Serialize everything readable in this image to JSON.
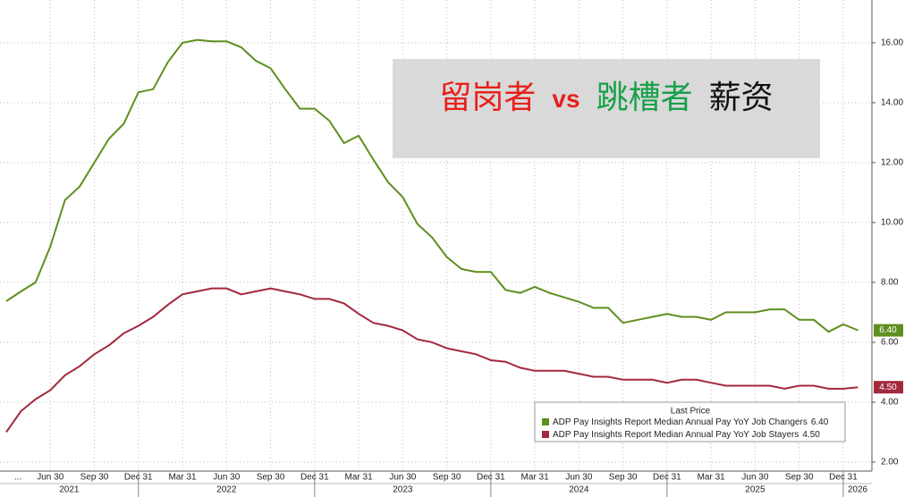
{
  "chart_data": {
    "type": "line",
    "annotation": [
      {
        "text": "留岗者",
        "color": "#e8201c"
      },
      {
        "text": "vs",
        "color": "#e8201c"
      },
      {
        "text": "跳槽者",
        "color": "#19a04a"
      },
      {
        "text": "薪资",
        "color": "#111111"
      }
    ],
    "legend_title": "Last Price",
    "categories": [
      "...",
      null,
      null,
      "Jun 30",
      null,
      null,
      "Sep 30",
      null,
      null,
      "Dec 31",
      null,
      null,
      "Mar 31",
      null,
      null,
      "Jun 30",
      null,
      null,
      "Sep 30",
      null,
      null,
      "Dec 31",
      null,
      null,
      "Mar 31",
      null,
      null,
      "Jun 30",
      null,
      null,
      "Sep 30",
      null,
      null,
      "Dec 31",
      null,
      null,
      "Mar 31",
      null,
      null,
      "Jun 30",
      null,
      null,
      "Sep 30",
      null,
      null,
      "Dec 31",
      null,
      null,
      "Mar 31",
      null,
      null,
      "Jun 30",
      null,
      null,
      "Sep 30",
      null,
      null,
      "Dec 31",
      null
    ],
    "years": [
      "2021",
      "2022",
      "2023",
      "2024",
      "2025",
      "2026"
    ],
    "series": [
      {
        "name": "ADP Pay Insights Report Median Annual Pay YoY Job Changers",
        "color": "#5e8f1f",
        "last_label": "6.40",
        "values": [
          7.37,
          7.7,
          8.0,
          9.2,
          10.75,
          11.2,
          12.0,
          12.8,
          13.3,
          14.35,
          14.45,
          15.35,
          16.0,
          16.1,
          16.05,
          16.05,
          15.85,
          15.4,
          15.15,
          14.45,
          13.8,
          13.8,
          13.4,
          12.65,
          12.9,
          12.1,
          11.35,
          10.85,
          9.95,
          9.5,
          8.85,
          8.45,
          8.35,
          8.35,
          7.75,
          7.65,
          7.85,
          7.65,
          7.5,
          7.35,
          7.15,
          7.15,
          6.65,
          6.75,
          6.85,
          6.95,
          6.85,
          6.85,
          6.75,
          7.0,
          7.0,
          7.0,
          7.1,
          7.1,
          6.75,
          6.75,
          6.35,
          6.6,
          6.4
        ]
      },
      {
        "name": "ADP Pay Insights Report Median Annual Pay YoY Job Stayers",
        "color": "#a3283d",
        "last_label": "4.50",
        "values": [
          3.0,
          3.7,
          4.1,
          4.4,
          4.9,
          5.2,
          5.6,
          5.9,
          6.3,
          6.55,
          6.85,
          7.25,
          7.6,
          7.7,
          7.8,
          7.8,
          7.6,
          7.7,
          7.8,
          7.7,
          7.6,
          7.45,
          7.45,
          7.3,
          6.95,
          6.65,
          6.55,
          6.4,
          6.1,
          6.0,
          5.8,
          5.7,
          5.6,
          5.4,
          5.35,
          5.15,
          5.05,
          5.05,
          5.05,
          4.95,
          4.85,
          4.85,
          4.75,
          4.75,
          4.75,
          4.65,
          4.75,
          4.75,
          4.65,
          4.55,
          4.55,
          4.55,
          4.55,
          4.45,
          4.55,
          4.55,
          4.45,
          4.45,
          4.5
        ]
      }
    ],
    "ylim": [
      1.7,
      17.43
    ],
    "yticks": [
      {
        "value": 2,
        "label": "2.00"
      },
      {
        "value": 4,
        "label": "4.00"
      },
      {
        "value": 6,
        "label": "6.00"
      },
      {
        "value": 8,
        "label": "8.00"
      },
      {
        "value": 10,
        "label": "10.00"
      },
      {
        "value": 12,
        "label": "12.00"
      },
      {
        "value": 14,
        "label": "14.00"
      },
      {
        "value": 16,
        "label": "16.00"
      }
    ],
    "grid": true
  }
}
